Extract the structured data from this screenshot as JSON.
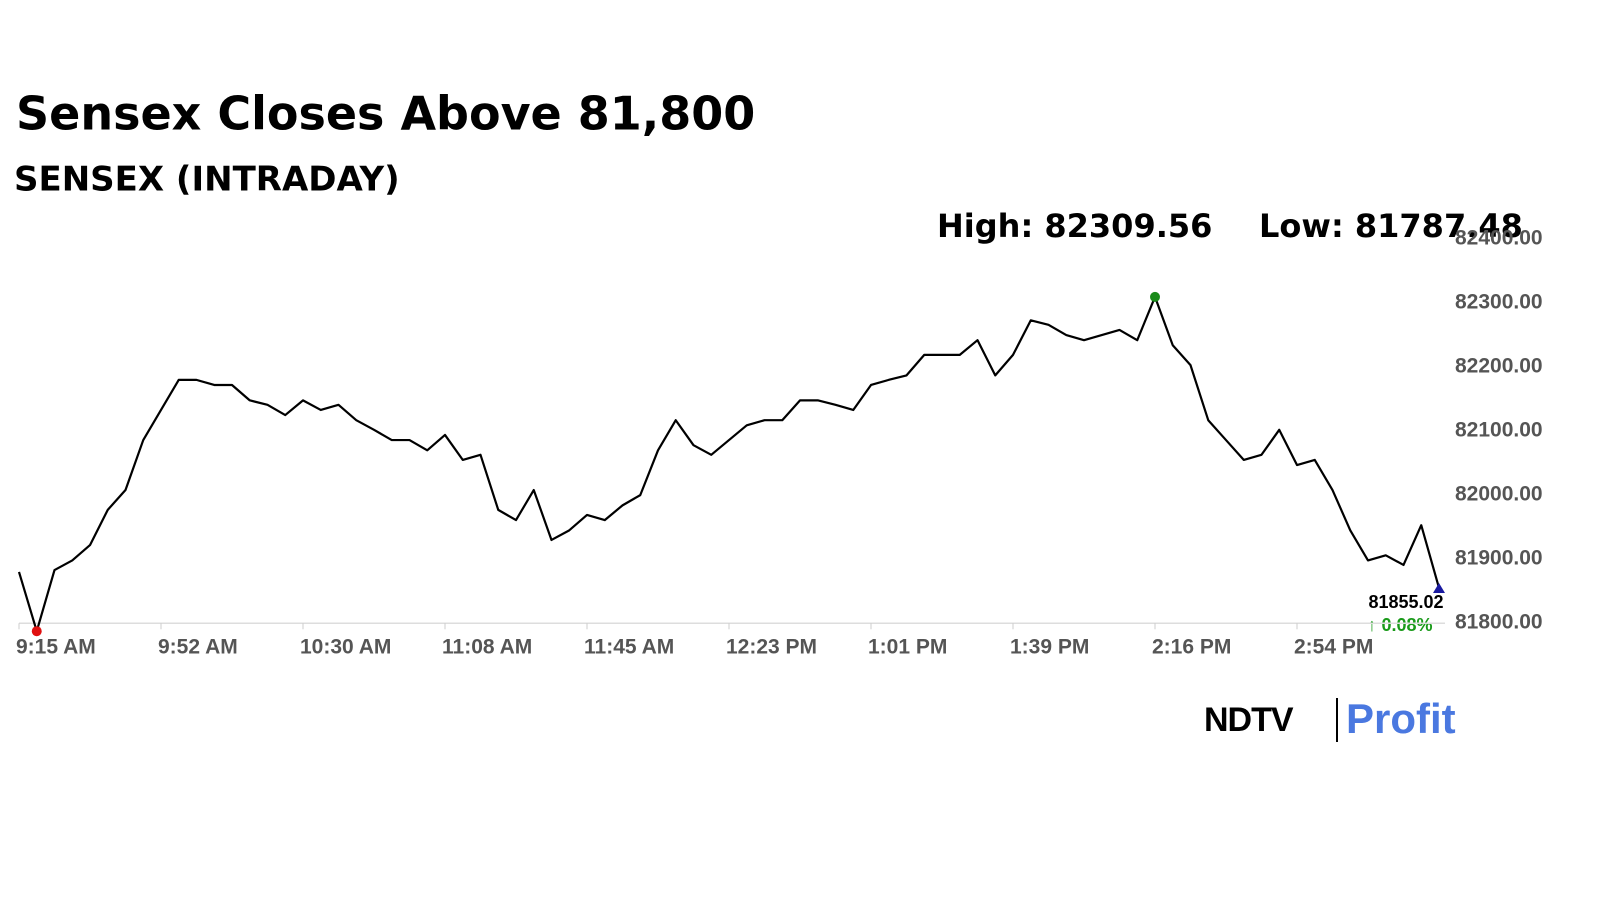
{
  "chart_data": {
    "type": "line",
    "title": "Sensex Closes Above 81,800",
    "subtitle": "SENSEX (INTRADAY)",
    "annotations": [
      "High: 82309.56",
      "Low: 81787.48"
    ],
    "last_value": 81855.02,
    "change": "↑ 0.08%",
    "color": "#000000",
    "high_color": "#1a8a1a",
    "low_color": "#e01010",
    "last_color": "#1a1aa0",
    "categories": [
      "9:15 AM",
      null,
      null,
      null,
      null,
      null,
      null,
      null,
      "9:52 AM",
      null,
      null,
      null,
      null,
      null,
      null,
      null,
      "10:30 AM",
      null,
      null,
      null,
      null,
      null,
      null,
      null,
      "11:08 AM",
      null,
      null,
      null,
      null,
      null,
      null,
      null,
      "11:45 AM",
      null,
      null,
      null,
      null,
      null,
      null,
      null,
      "12:23 PM",
      null,
      null,
      null,
      null,
      null,
      null,
      null,
      "1:01 PM",
      null,
      null,
      null,
      null,
      null,
      null,
      null,
      "1:39 PM",
      null,
      null,
      null,
      null,
      null,
      null,
      null,
      "2:16 PM",
      null,
      null,
      null,
      null,
      null,
      null,
      null,
      "2:54 PM",
      null,
      null,
      null,
      null,
      null,
      null,
      null,
      null
    ],
    "values": [
      81880,
      81787.48,
      81883,
      81898,
      81922,
      81977,
      82008,
      82086,
      82133,
      82180,
      82180,
      82172,
      82172,
      82148,
      82141,
      82125,
      82148,
      82133,
      82141,
      82117,
      82102,
      82086,
      82086,
      82070,
      82094,
      82055,
      82063,
      81977,
      81961,
      82008,
      81930,
      81945,
      81969,
      81961,
      81984,
      82000,
      82070,
      82117,
      82078,
      82063,
      82086,
      82109,
      82117,
      82117,
      82148,
      82148,
      82141,
      82133,
      82172,
      82180,
      82187,
      82219,
      82219,
      82219,
      82242,
      82187,
      82219,
      82273,
      82266,
      82250,
      82242,
      82250,
      82258,
      82242,
      82309.56,
      82234,
      82203,
      82117,
      82086,
      82055,
      82063,
      82102,
      82047,
      82055,
      82008,
      81945,
      81898,
      81906,
      81891,
      81953,
      81855.02
    ],
    "ylim": [
      81780,
      82400
    ],
    "yticks": [
      {
        "value": 81800,
        "label": "81800.00"
      },
      {
        "value": 81900,
        "label": "81900.00"
      },
      {
        "value": 82000,
        "label": "82000.00"
      },
      {
        "value": 82100,
        "label": "82100.00"
      },
      {
        "value": 82200,
        "label": "82200.00"
      },
      {
        "value": 82300,
        "label": "82300.00"
      },
      {
        "value": 82400,
        "label": "82400.00"
      }
    ]
  },
  "branding": {
    "left": "NDTV",
    "right": "Profit"
  }
}
